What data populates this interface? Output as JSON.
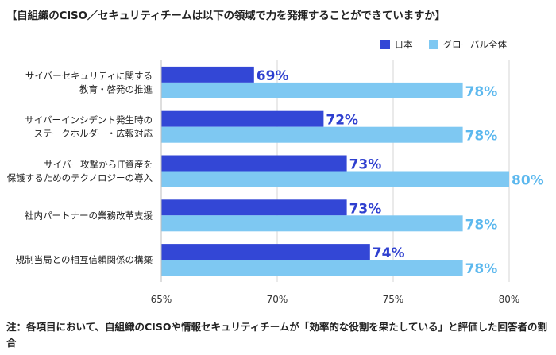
{
  "title": "【自組織のCISO／セキュリティチームは以下の領域で力を発揮することができていますか】",
  "note": "注：各項目において、自組織のCISOや情報セキュリティチームが「効率的な役割を果たしている」と評価した回答者の割合",
  "colors": {
    "japan": "#3347d6",
    "global": "#7ec8f2",
    "label_japan": "#2e3fcf",
    "label_global": "#5cb8ee"
  },
  "chart_data": {
    "type": "bar",
    "orientation": "horizontal",
    "categories": [
      [
        "サイバーセキュリティに関する",
        "教育・啓発の推進"
      ],
      [
        "サイバーインシデント発生時の",
        "ステークホルダー・広報対応"
      ],
      [
        "サイバー攻撃からIT資産を",
        "保護するためのテクノロジーの導入"
      ],
      [
        "社内パートナーの業務改革支援"
      ],
      [
        "規制当局との相互信頼関係の構築"
      ]
    ],
    "series": [
      {
        "name": "日本",
        "values": [
          69,
          72,
          73,
          73,
          74
        ],
        "labels": [
          "69%",
          "72%",
          "73%",
          "73%",
          "74%"
        ]
      },
      {
        "name": "グローバル全体",
        "values": [
          78,
          78,
          80,
          78,
          78
        ],
        "labels": [
          "78%",
          "78%",
          "80%",
          "78%",
          "78%"
        ]
      }
    ],
    "xlim": [
      65,
      80
    ],
    "xticks": [
      65,
      70,
      75,
      80
    ],
    "xtick_labels": [
      "65%",
      "70%",
      "75%",
      "80%"
    ],
    "grid": true,
    "legend_position": "top-right"
  }
}
